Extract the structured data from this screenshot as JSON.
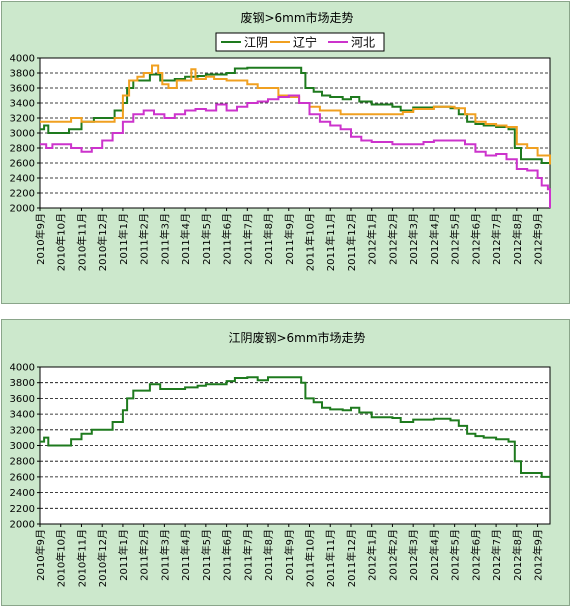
{
  "chart_data": [
    {
      "type": "line",
      "title": "废钢>6mm市场走势",
      "ylim": [
        2000,
        4000
      ],
      "yticks": [
        "4000",
        "3800",
        "3600",
        "3400",
        "3200",
        "3000",
        "2800",
        "2600",
        "2400",
        "2200",
        "2000"
      ],
      "categories": [
        "2010年9月",
        "2010年10月",
        "2010年11月",
        "2010年12月",
        "2011年1月",
        "2011年2月",
        "2011年3月",
        "2011年4月",
        "2011年5月",
        "2011年6月",
        "2011年7月",
        "2011年8月",
        "2011年9月",
        "2011年10月",
        "2011年11月",
        "2011年12月",
        "2012年1月",
        "2012年2月",
        "2012年3月",
        "2012年4月",
        "2012年5月",
        "2012年6月",
        "2012年7月",
        "2012年8月",
        "2012年9月"
      ],
      "legend_position": "top",
      "grid": true,
      "series": [
        {
          "name": "江阴",
          "color": "#1e7a1e",
          "points": [
            [
              0,
              3050
            ],
            [
              0.2,
              3100
            ],
            [
              0.4,
              3000
            ],
            [
              1.0,
              3000
            ],
            [
              1.4,
              3050
            ],
            [
              2.0,
              3150
            ],
            [
              2.6,
              3200
            ],
            [
              3.0,
              3200
            ],
            [
              3.6,
              3300
            ],
            [
              4.0,
              3400
            ],
            [
              4.2,
              3600
            ],
            [
              4.5,
              3700
            ],
            [
              5.0,
              3700
            ],
            [
              5.3,
              3780
            ],
            [
              5.8,
              3700
            ],
            [
              6.5,
              3720
            ],
            [
              7.0,
              3750
            ],
            [
              7.6,
              3760
            ],
            [
              8.0,
              3780
            ],
            [
              9.0,
              3800
            ],
            [
              9.4,
              3860
            ],
            [
              10.0,
              3870
            ],
            [
              11.0,
              3870
            ],
            [
              12.0,
              3870
            ],
            [
              12.6,
              3800
            ],
            [
              12.8,
              3600
            ],
            [
              13.2,
              3550
            ],
            [
              13.6,
              3500
            ],
            [
              14.0,
              3480
            ],
            [
              14.6,
              3450
            ],
            [
              15.0,
              3480
            ],
            [
              15.4,
              3420
            ],
            [
              16.0,
              3380
            ],
            [
              17.0,
              3350
            ],
            [
              17.4,
              3300
            ],
            [
              18.0,
              3340
            ],
            [
              19.0,
              3350
            ],
            [
              19.8,
              3330
            ],
            [
              20.2,
              3250
            ],
            [
              20.6,
              3150
            ],
            [
              21.0,
              3120
            ],
            [
              21.4,
              3100
            ],
            [
              22.0,
              3080
            ],
            [
              22.6,
              3050
            ],
            [
              22.9,
              2800
            ],
            [
              23.2,
              2650
            ],
            [
              24.0,
              2650
            ],
            [
              24.2,
              2600
            ],
            [
              24.6,
              2600
            ]
          ]
        },
        {
          "name": "辽宁",
          "color": "#f0a020",
          "points": [
            [
              0,
              3150
            ],
            [
              0.6,
              3150
            ],
            [
              1.0,
              3150
            ],
            [
              1.5,
              3200
            ],
            [
              2.0,
              3150
            ],
            [
              2.5,
              3150
            ],
            [
              3.0,
              3150
            ],
            [
              3.6,
              3200
            ],
            [
              4.0,
              3500
            ],
            [
              4.3,
              3700
            ],
            [
              4.7,
              3750
            ],
            [
              5.0,
              3800
            ],
            [
              5.4,
              3900
            ],
            [
              5.7,
              3800
            ],
            [
              5.9,
              3650
            ],
            [
              6.2,
              3600
            ],
            [
              6.6,
              3700
            ],
            [
              7.0,
              3700
            ],
            [
              7.3,
              3850
            ],
            [
              7.5,
              3720
            ],
            [
              8.0,
              3750
            ],
            [
              8.4,
              3720
            ],
            [
              9.0,
              3700
            ],
            [
              10.0,
              3650
            ],
            [
              10.5,
              3600
            ],
            [
              11.0,
              3600
            ],
            [
              11.5,
              3500
            ],
            [
              12.0,
              3480
            ],
            [
              12.5,
              3400
            ],
            [
              13.0,
              3350
            ],
            [
              13.5,
              3300
            ],
            [
              14.0,
              3300
            ],
            [
              14.5,
              3250
            ],
            [
              15.0,
              3250
            ],
            [
              16.0,
              3250
            ],
            [
              17.0,
              3250
            ],
            [
              17.5,
              3280
            ],
            [
              18.0,
              3320
            ],
            [
              19.0,
              3350
            ],
            [
              20.0,
              3330
            ],
            [
              20.5,
              3250
            ],
            [
              21.0,
              3150
            ],
            [
              21.5,
              3120
            ],
            [
              22.0,
              3100
            ],
            [
              22.5,
              3080
            ],
            [
              23.0,
              2850
            ],
            [
              23.5,
              2800
            ],
            [
              24.0,
              2700
            ],
            [
              24.6,
              2580
            ]
          ]
        },
        {
          "name": "河北",
          "color": "#cc33cc",
          "points": [
            [
              0,
              2850
            ],
            [
              0.3,
              2800
            ],
            [
              0.6,
              2850
            ],
            [
              1.0,
              2850
            ],
            [
              1.5,
              2800
            ],
            [
              2.0,
              2750
            ],
            [
              2.5,
              2800
            ],
            [
              3.0,
              2900
            ],
            [
              3.5,
              3000
            ],
            [
              4.0,
              3150
            ],
            [
              4.5,
              3250
            ],
            [
              5.0,
              3300
            ],
            [
              5.5,
              3250
            ],
            [
              6.0,
              3200
            ],
            [
              6.5,
              3250
            ],
            [
              7.0,
              3300
            ],
            [
              7.5,
              3320
            ],
            [
              8.0,
              3300
            ],
            [
              8.5,
              3380
            ],
            [
              9.0,
              3300
            ],
            [
              9.5,
              3350
            ],
            [
              10.0,
              3400
            ],
            [
              10.5,
              3420
            ],
            [
              11.0,
              3450
            ],
            [
              11.5,
              3480
            ],
            [
              12.0,
              3500
            ],
            [
              12.5,
              3400
            ],
            [
              13.0,
              3250
            ],
            [
              13.5,
              3150
            ],
            [
              14.0,
              3100
            ],
            [
              14.5,
              3050
            ],
            [
              15.0,
              2950
            ],
            [
              15.5,
              2900
            ],
            [
              16.0,
              2880
            ],
            [
              17.0,
              2850
            ],
            [
              18.0,
              2850
            ],
            [
              18.5,
              2880
            ],
            [
              19.0,
              2900
            ],
            [
              20.0,
              2900
            ],
            [
              20.5,
              2850
            ],
            [
              21.0,
              2750
            ],
            [
              21.5,
              2700
            ],
            [
              22.0,
              2720
            ],
            [
              22.5,
              2650
            ],
            [
              23.0,
              2520
            ],
            [
              23.5,
              2500
            ],
            [
              24.0,
              2400
            ],
            [
              24.2,
              2300
            ],
            [
              24.5,
              2250
            ],
            [
              24.6,
              2000
            ]
          ]
        }
      ]
    },
    {
      "type": "line",
      "title": "江阴废钢>6mm市场走势",
      "ylim": [
        2000,
        4000
      ],
      "yticks": [
        "4000",
        "3800",
        "3600",
        "3400",
        "3200",
        "3000",
        "2800",
        "2600",
        "2400",
        "2200",
        "2000"
      ],
      "categories": [
        "2010年9月",
        "2010年10月",
        "2010年11月",
        "2010年12月",
        "2011年1月",
        "2011年2月",
        "2011年3月",
        "2011年4月",
        "2011年5月",
        "2011年6月",
        "2011年7月",
        "2011年8月",
        "2011年9月",
        "2011年10月",
        "2011年11月",
        "2011年12月",
        "2012年1月",
        "2012年2月",
        "2012年3月",
        "2012年4月",
        "2012年5月",
        "2012年6月",
        "2012年7月",
        "2012年8月",
        "2012年9月"
      ],
      "legend_position": "none",
      "grid": true,
      "series": [
        {
          "color": "#1e7a1e",
          "points": [
            [
              0,
              3050
            ],
            [
              0.2,
              3100
            ],
            [
              0.4,
              3000
            ],
            [
              1.0,
              3000
            ],
            [
              1.5,
              3080
            ],
            [
              2.0,
              3150
            ],
            [
              2.5,
              3200
            ],
            [
              3.0,
              3200
            ],
            [
              3.5,
              3300
            ],
            [
              4.0,
              3450
            ],
            [
              4.2,
              3600
            ],
            [
              4.5,
              3700
            ],
            [
              5.0,
              3700
            ],
            [
              5.3,
              3780
            ],
            [
              5.8,
              3720
            ],
            [
              6.5,
              3720
            ],
            [
              7.0,
              3740
            ],
            [
              7.6,
              3760
            ],
            [
              8.0,
              3780
            ],
            [
              9.0,
              3820
            ],
            [
              9.4,
              3860
            ],
            [
              10.0,
              3870
            ],
            [
              10.5,
              3830
            ],
            [
              11.0,
              3870
            ],
            [
              12.0,
              3870
            ],
            [
              12.6,
              3800
            ],
            [
              12.8,
              3600
            ],
            [
              13.2,
              3550
            ],
            [
              13.6,
              3480
            ],
            [
              14.0,
              3460
            ],
            [
              14.6,
              3450
            ],
            [
              15.0,
              3480
            ],
            [
              15.4,
              3420
            ],
            [
              16.0,
              3360
            ],
            [
              17.0,
              3350
            ],
            [
              17.4,
              3300
            ],
            [
              18.0,
              3330
            ],
            [
              19.0,
              3340
            ],
            [
              19.8,
              3320
            ],
            [
              20.2,
              3250
            ],
            [
              20.6,
              3150
            ],
            [
              21.0,
              3120
            ],
            [
              21.4,
              3100
            ],
            [
              22.0,
              3080
            ],
            [
              22.6,
              3050
            ],
            [
              22.9,
              2800
            ],
            [
              23.2,
              2650
            ],
            [
              24.0,
              2650
            ],
            [
              24.2,
              2600
            ],
            [
              24.6,
              2600
            ]
          ]
        }
      ]
    }
  ]
}
